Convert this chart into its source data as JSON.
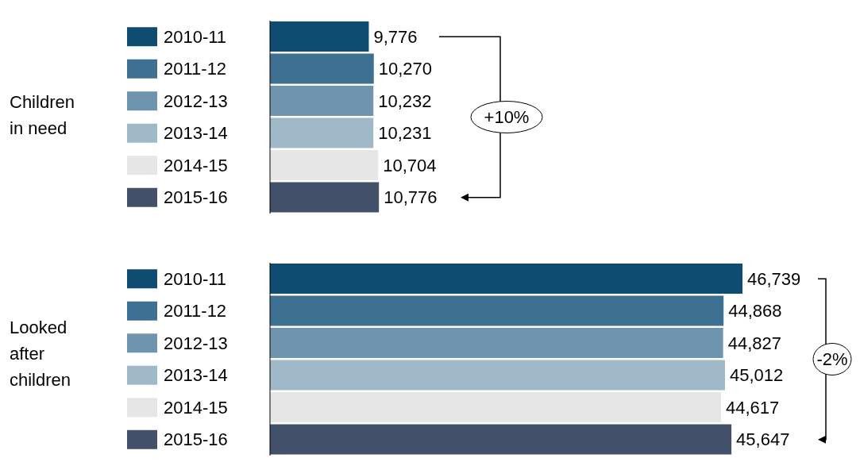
{
  "chart_data": [
    {
      "type": "bar",
      "orientation": "horizontal",
      "ylabel": "Children in need",
      "categories": [
        "2010-11",
        "2011-12",
        "2012-13",
        "2013-14",
        "2014-15",
        "2015-16"
      ],
      "values": [
        9776,
        10270,
        10232,
        10231,
        10704,
        10776
      ],
      "value_labels": [
        "9,776",
        "10,270",
        "10,232",
        "10,231",
        "10,704",
        "10,776"
      ],
      "colors": [
        "#0f4c72",
        "#3e7092",
        "#6f95ae",
        "#a0b9c9",
        "#e6e6e6",
        "#435069"
      ],
      "tick_labels": "y",
      "annotations": [
        "+10%"
      ]
    },
    {
      "type": "bar",
      "orientation": "horizontal",
      "ylabel": "Looked after children",
      "categories": [
        "2010-11",
        "2011-12",
        "2012-13",
        "2013-14",
        "2014-15",
        "2015-16"
      ],
      "values": [
        46739,
        44868,
        44827,
        45012,
        44617,
        45647
      ],
      "value_labels": [
        "46,739",
        "44,868",
        "44,827",
        "45,012",
        "44,617",
        "45,647"
      ],
      "colors": [
        "#0f4c72",
        "#3e7092",
        "#6f95ae",
        "#a0b9c9",
        "#e6e6e6",
        "#435069"
      ],
      "tick_labels": "y",
      "annotations": [
        "-2%"
      ]
    }
  ]
}
